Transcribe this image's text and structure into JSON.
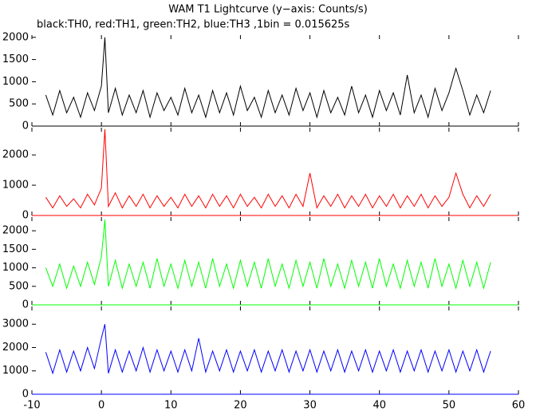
{
  "chart_data": [
    {
      "type": "line",
      "title": "WAM T1 Lightcurve (y−axis: Counts/s)",
      "subtitle": "black:TH0, red:TH1, green:TH2, blue:TH3 ,1bin = 0.015625s",
      "color": "#000000",
      "xlim": [
        -10,
        60
      ],
      "xticks": [
        -10,
        0,
        10,
        20,
        30,
        40,
        50,
        60
      ],
      "ylim": [
        0,
        2050
      ],
      "yticks": [
        0,
        500,
        1000,
        1500,
        2000
      ],
      "x": [
        -8,
        -7,
        -6,
        -5,
        -4,
        -3,
        -2,
        -1,
        0,
        0.5,
        1,
        2,
        3,
        4,
        5,
        6,
        7,
        8,
        9,
        10,
        11,
        12,
        13,
        14,
        15,
        16,
        17,
        18,
        19,
        20,
        21,
        22,
        23,
        24,
        25,
        26,
        27,
        28,
        29,
        30,
        31,
        32,
        33,
        34,
        35,
        36,
        37,
        38,
        39,
        40,
        41,
        42,
        43,
        44,
        45,
        46,
        47,
        48,
        49,
        50,
        51,
        52,
        53,
        54,
        55,
        56
      ],
      "values": [
        700,
        250,
        800,
        300,
        650,
        200,
        750,
        350,
        900,
        2000,
        300,
        850,
        250,
        700,
        300,
        800,
        200,
        750,
        350,
        650,
        250,
        850,
        300,
        700,
        200,
        800,
        300,
        750,
        250,
        900,
        350,
        650,
        200,
        800,
        300,
        700,
        250,
        850,
        350,
        750,
        200,
        800,
        300,
        650,
        250,
        900,
        300,
        700,
        200,
        800,
        350,
        750,
        250,
        1150,
        300,
        700,
        200,
        850,
        350,
        750,
        1300,
        800,
        250,
        700,
        300,
        800
      ]
    },
    {
      "type": "line",
      "color": "#ff0000",
      "xlim": [
        -10,
        60
      ],
      "xticks": [
        -10,
        0,
        10,
        20,
        30,
        40,
        50,
        60
      ],
      "ylim": [
        0,
        2900
      ],
      "yticks": [
        0,
        1000,
        2000
      ],
      "x": [
        -8,
        -7,
        -6,
        -5,
        -4,
        -3,
        -2,
        -1,
        0,
        0.5,
        1,
        2,
        3,
        4,
        5,
        6,
        7,
        8,
        9,
        10,
        11,
        12,
        13,
        14,
        15,
        16,
        17,
        18,
        19,
        20,
        21,
        22,
        23,
        24,
        25,
        26,
        27,
        28,
        29,
        30,
        31,
        32,
        33,
        34,
        35,
        36,
        37,
        38,
        39,
        40,
        41,
        42,
        43,
        44,
        45,
        46,
        47,
        48,
        49,
        50,
        51,
        52,
        53,
        54,
        55,
        56
      ],
      "values": [
        600,
        250,
        650,
        300,
        550,
        250,
        700,
        350,
        900,
        2850,
        300,
        750,
        250,
        650,
        300,
        700,
        250,
        650,
        300,
        600,
        250,
        700,
        300,
        650,
        250,
        700,
        300,
        650,
        250,
        700,
        300,
        600,
        250,
        700,
        300,
        650,
        250,
        700,
        300,
        1400,
        250,
        650,
        300,
        700,
        250,
        650,
        300,
        700,
        250,
        650,
        300,
        700,
        250,
        650,
        300,
        700,
        250,
        650,
        300,
        600,
        1400,
        700,
        250,
        650,
        300,
        700
      ]
    },
    {
      "type": "line",
      "color": "#00ff00",
      "xlim": [
        -10,
        60
      ],
      "xticks": [
        -10,
        0,
        10,
        20,
        30,
        40,
        50,
        60
      ],
      "ylim": [
        0,
        2370
      ],
      "yticks": [
        0,
        500,
        1000,
        1500,
        2000
      ],
      "x": [
        -8,
        -7,
        -6,
        -5,
        -4,
        -3,
        -2,
        -1,
        0,
        0.5,
        1,
        2,
        3,
        4,
        5,
        6,
        7,
        8,
        9,
        10,
        11,
        12,
        13,
        14,
        15,
        16,
        17,
        18,
        19,
        20,
        21,
        22,
        23,
        24,
        25,
        26,
        27,
        28,
        29,
        30,
        31,
        32,
        33,
        34,
        35,
        36,
        37,
        38,
        39,
        40,
        41,
        42,
        43,
        44,
        45,
        46,
        47,
        48,
        49,
        50,
        51,
        52,
        53,
        54,
        55,
        56
      ],
      "values": [
        1000,
        500,
        1100,
        450,
        1050,
        500,
        1150,
        550,
        1300,
        2300,
        500,
        1200,
        450,
        1100,
        500,
        1150,
        450,
        1250,
        500,
        1100,
        450,
        1200,
        500,
        1150,
        450,
        1250,
        500,
        1100,
        450,
        1200,
        500,
        1150,
        450,
        1250,
        500,
        1100,
        450,
        1200,
        500,
        1150,
        450,
        1250,
        500,
        1100,
        450,
        1200,
        500,
        1150,
        450,
        1250,
        500,
        1100,
        450,
        1200,
        500,
        1150,
        450,
        1250,
        500,
        1100,
        450,
        1200,
        500,
        1150,
        450,
        1150
      ]
    },
    {
      "type": "line",
      "color": "#0000ff",
      "xlim": [
        -10,
        60
      ],
      "xticks": [
        -10,
        0,
        10,
        20,
        30,
        40,
        50,
        60
      ],
      "ylim": [
        0,
        3760
      ],
      "yticks": [
        0,
        1000,
        2000,
        3000
      ],
      "x": [
        -8,
        -7,
        -6,
        -5,
        -4,
        -3,
        -2,
        -1,
        0,
        0.5,
        1,
        2,
        3,
        4,
        5,
        6,
        7,
        8,
        9,
        10,
        11,
        12,
        13,
        14,
        15,
        16,
        17,
        18,
        19,
        20,
        21,
        22,
        23,
        24,
        25,
        26,
        27,
        28,
        29,
        30,
        31,
        32,
        33,
        34,
        35,
        36,
        37,
        38,
        39,
        40,
        41,
        42,
        43,
        44,
        45,
        46,
        47,
        48,
        49,
        50,
        51,
        52,
        53,
        54,
        55,
        56
      ],
      "values": [
        1800,
        900,
        1900,
        950,
        1850,
        1000,
        2000,
        1100,
        2400,
        3000,
        900,
        1900,
        950,
        1850,
        1000,
        2000,
        950,
        1900,
        1000,
        1850,
        950,
        1900,
        1000,
        2400,
        950,
        1850,
        1000,
        1900,
        950,
        1850,
        1000,
        1900,
        950,
        1850,
        1000,
        1900,
        950,
        1850,
        1000,
        1900,
        950,
        1850,
        1000,
        1900,
        950,
        1850,
        1000,
        1900,
        950,
        1850,
        1000,
        1900,
        950,
        1850,
        1000,
        1900,
        950,
        1850,
        1000,
        1900,
        950,
        1850,
        1000,
        1900,
        950,
        1850
      ]
    }
  ]
}
